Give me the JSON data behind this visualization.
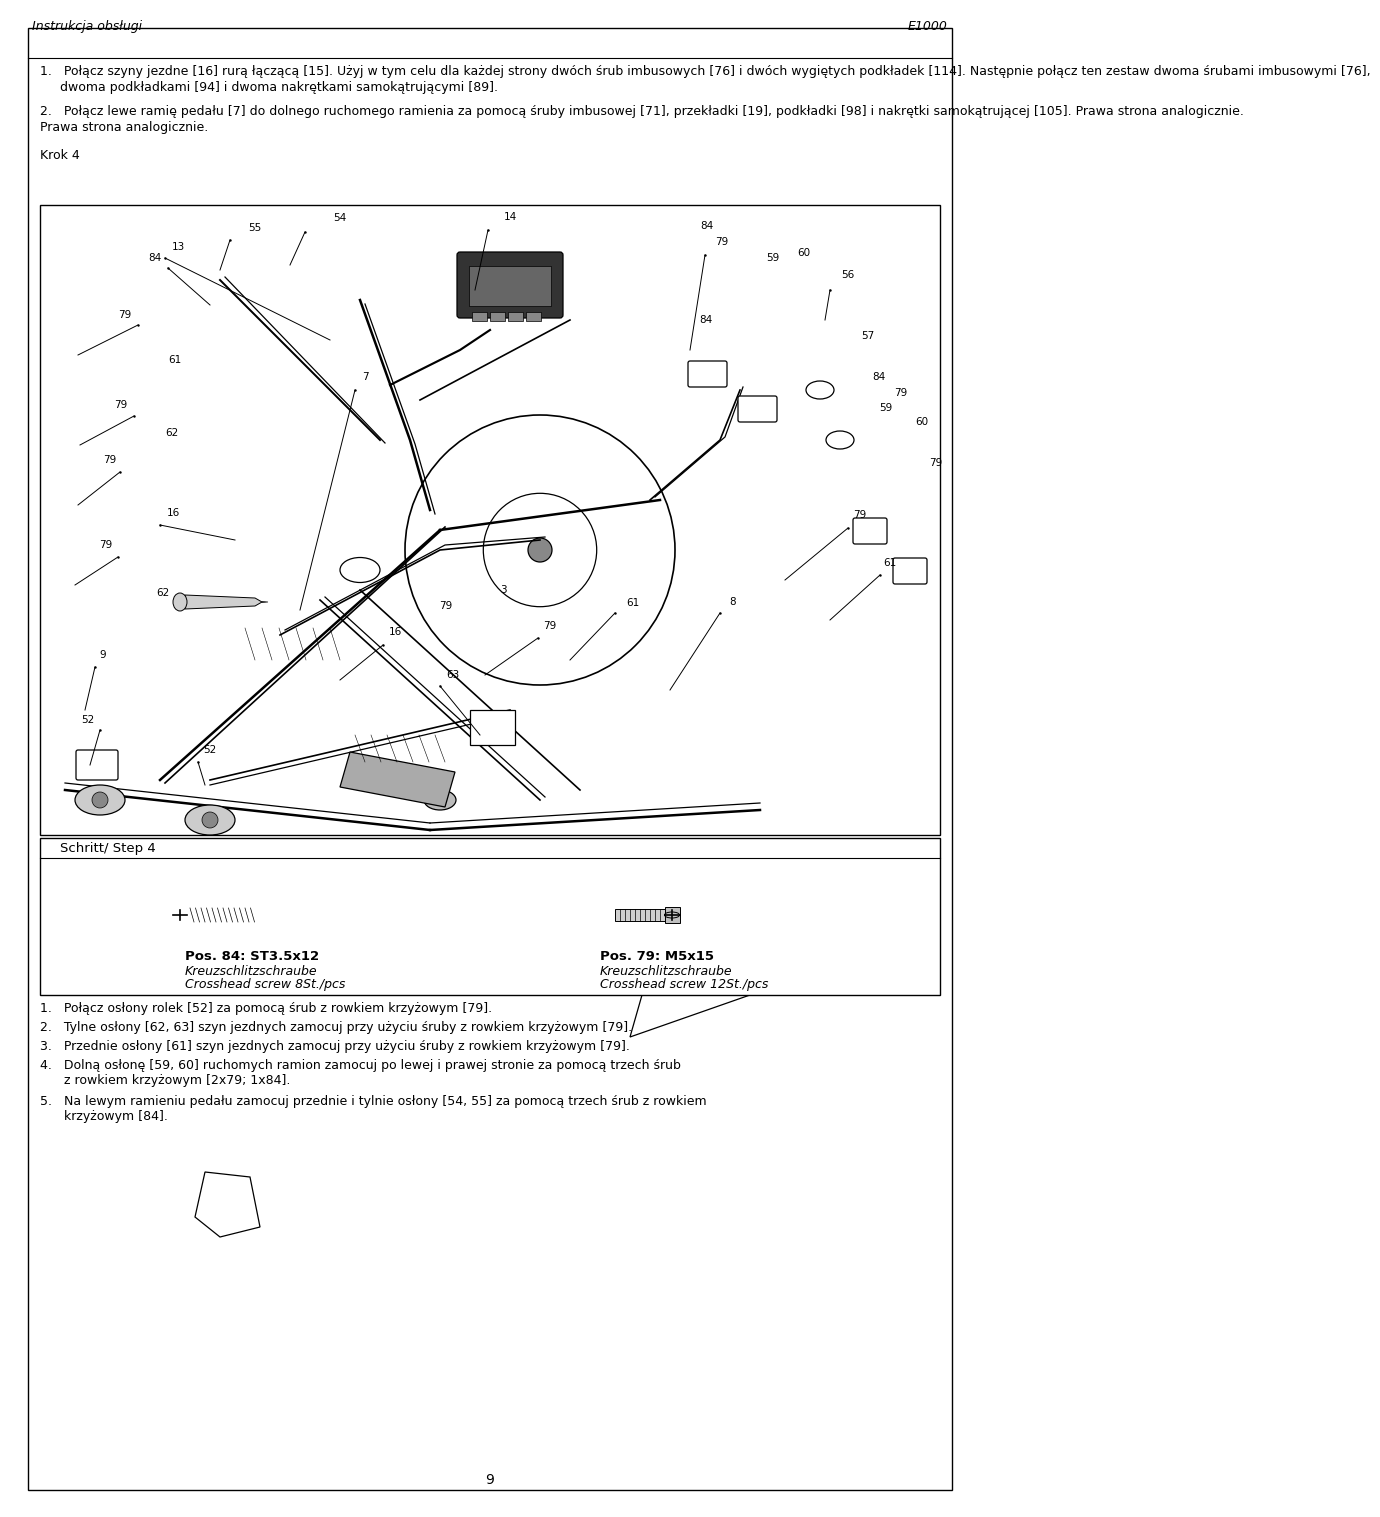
{
  "page_width": 9.6,
  "page_height": 14.97,
  "background_color": "#ffffff",
  "border_color": "#000000",
  "header_left": "Instrukcja obsługi",
  "header_right": "E1000",
  "header_font_size": 9,
  "body_font_size": 9.0,
  "footer_text": "9",
  "footer_font_size": 10,
  "krok4_label": "Krok 4",
  "step_label": "Schritt/ Step 4",
  "part1_label": "Pos. 84: ST3.5x12",
  "part1_sub1": "Kreuzschlitzschraube",
  "part1_sub2": "Crosshead screw 8St./pcs",
  "part2_label": "Pos. 79: M5x15",
  "part2_sub1": "Kreuzschlitzschraube",
  "part2_sub2": "Crosshead screw 12St./pcs",
  "text_color": "#000000",
  "para1_line1": "1.   Połącz szyny jezdne [16] rurą łączącą [15]. Użyj w tym celu dla każdej strony dwóch śrub imbusowych [76] i dwóch wygiętych podkładek [114]. Następnie połącz ten zestaw dwoma śrubami imbusowymi [76],",
  "para1_line2": "     dwoma podkładkami [94] i dwoma nakrętkami samokątrującymi [89].",
  "para2_line1": "2.   Połącz lewe ramię pedału [7] do dolnego ruchomego ramienia za pomocą śruby imbusowej [71], przekładki [19], podkładki [98] i nakrętki samokątrującej [105]. Prawa strona analogicznie.",
  "bottom1": "1.   Połącz osłony rolek [52] za pomocą śrub z rowkiem krzyżowym [79].",
  "bottom2": "2.   Tylne osłony [62, 63] szyn jezdnych zamocuj przy użyciu śruby z rowkiem krzyżowym [79].",
  "bottom3": "3.   Przednie osłony [61] szyn jezdnych zamocuj przy użyciu śruby z rowkiem krzyżowym [79].",
  "bottom4a": "4.   Dolną osłonę [59, 60] ruchomych ramion zamocuj po lewej i prawej stronie za pomocą trzech śrub",
  "bottom4b": "      z rowkiem krzyżowym [2x79; 1x84].",
  "bottom5a": "5.   Na lewym ramieniu pedału zamocuj przednie i tylnie osłony [54, 55] za pomocą trzech śrub z rowkiem",
  "bottom5b": "      krzyżowym [84]."
}
